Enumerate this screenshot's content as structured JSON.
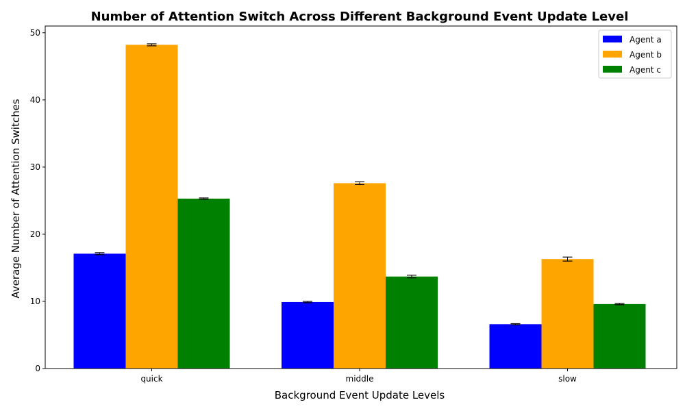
{
  "chart_data": {
    "type": "bar",
    "title": "Number of Attention Switch Across Different Background Event Update Level",
    "xlabel": "Background Event Update Levels",
    "ylabel": "Average Number of Attention Switches",
    "categories": [
      "quick",
      "middle",
      "slow"
    ],
    "ylim": [
      0,
      51
    ],
    "yticks": [
      0,
      10,
      20,
      30,
      40,
      50
    ],
    "grid": false,
    "legend_position": "top-right",
    "series": [
      {
        "name": "Agent a",
        "color": "#0000ff",
        "values": [
          17.1,
          9.9,
          6.6
        ],
        "errors": [
          0.15,
          0.1,
          0.08
        ]
      },
      {
        "name": "Agent b",
        "color": "#ffa500",
        "values": [
          48.2,
          27.6,
          16.3
        ],
        "errors": [
          0.15,
          0.2,
          0.3
        ]
      },
      {
        "name": "Agent c",
        "color": "#008000",
        "values": [
          25.3,
          13.7,
          9.6
        ],
        "errors": [
          0.1,
          0.2,
          0.1
        ]
      }
    ]
  }
}
